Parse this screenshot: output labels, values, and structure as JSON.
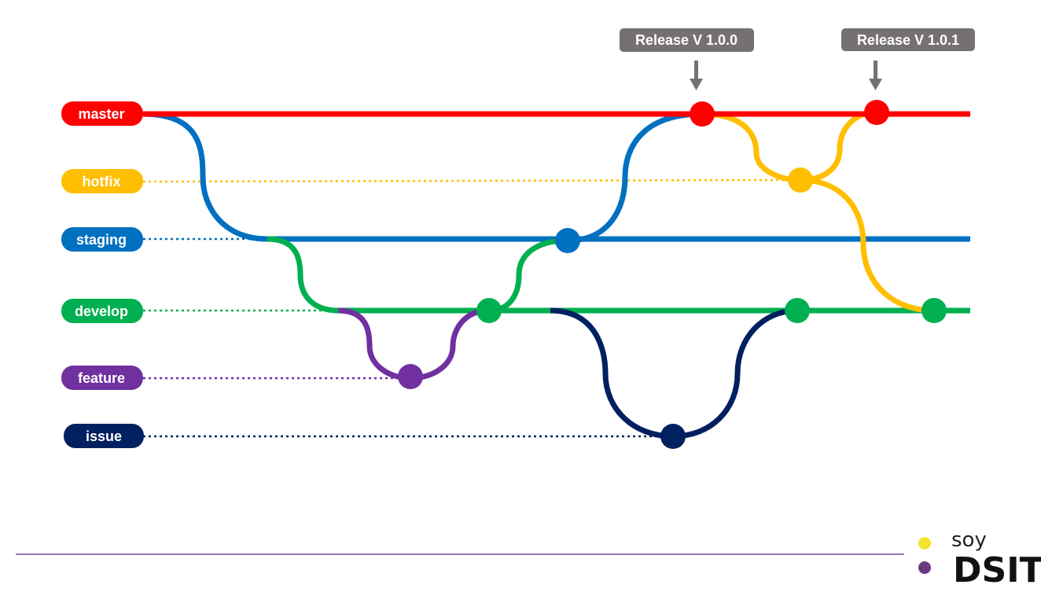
{
  "diagram": {
    "branches": [
      {
        "key": "master",
        "label": "master",
        "color": "#ff0000"
      },
      {
        "key": "hotfix",
        "label": "hotfix",
        "color": "#ffbf00"
      },
      {
        "key": "staging",
        "label": "staging",
        "color": "#0070c0"
      },
      {
        "key": "develop",
        "label": "develop",
        "color": "#00b050"
      },
      {
        "key": "feature",
        "label": "feature",
        "color": "#7030a0"
      },
      {
        "key": "issue",
        "label": "issue",
        "color": "#002060"
      }
    ],
    "releases": [
      {
        "label": "Release V 1.0.0"
      },
      {
        "label": "Release V 1.0.1"
      }
    ],
    "release_color": "#767171"
  },
  "branding": {
    "soy": "soy",
    "dsit": "DSIT",
    "dot_top_color": "#f2e52e",
    "dot_bottom_color": "#6b3a7d",
    "footer_line_color": "#7b4a8f"
  }
}
